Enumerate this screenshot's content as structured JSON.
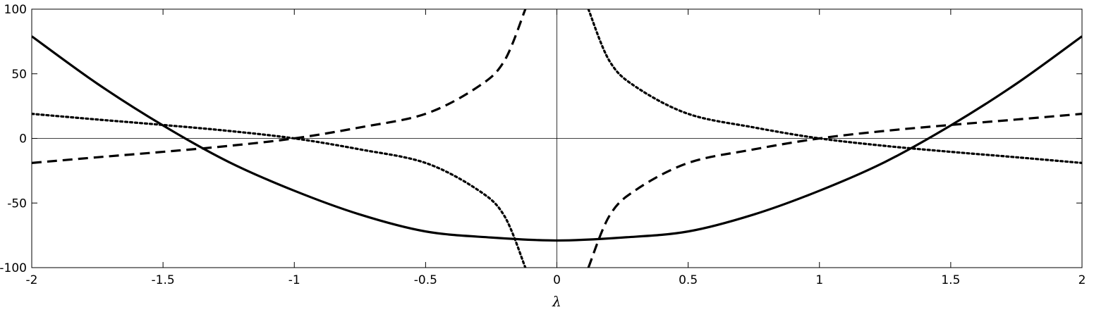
{
  "chart_data": {
    "type": "line",
    "xlabel": "λ",
    "ylabel": "",
    "xlim": [
      -2,
      2
    ],
    "ylim": [
      -100,
      100
    ],
    "xticks": [
      -2,
      -1.5,
      -1,
      -0.5,
      0,
      0.5,
      1,
      1.5,
      2
    ],
    "xtick_labels": [
      "-2",
      "-1.5",
      "-1",
      "-0.5",
      "0",
      "0.5",
      "1",
      "1.5",
      "2"
    ],
    "yticks": [
      -100,
      -50,
      0,
      50,
      100
    ],
    "ytick_labels": [
      "-100",
      "-50",
      "0",
      "50",
      "100"
    ],
    "grid": false,
    "reference_lines": {
      "x": 0,
      "y": 0
    },
    "series": [
      {
        "style": "solid",
        "color": "#000000",
        "x": [
          -2,
          -1.75,
          -1.5,
          -1.25,
          -1,
          -0.75,
          -0.5,
          -0.25,
          0,
          0.25,
          0.5,
          0.75,
          1,
          1.25,
          1.5,
          1.75,
          2
        ],
        "y": [
          79,
          42.3,
          10,
          -18.2,
          -40.5,
          -58.9,
          -72,
          -76.7,
          -79,
          -76.7,
          -72,
          -58.9,
          -40.5,
          -18.2,
          10,
          42.3,
          79
        ]
      },
      {
        "style": "dashed",
        "color": "#000000",
        "x": [
          -2,
          -1.75,
          -1.5,
          -1.25,
          -1,
          -0.75,
          -0.5,
          -0.3,
          -0.2,
          -0.12,
          0.12,
          0.2,
          0.3,
          0.5,
          0.75,
          1,
          1.25,
          1.5,
          1.75,
          2
        ],
        "y": [
          -19,
          -14.6,
          -10.4,
          -5.8,
          0,
          8.5,
          19,
          40,
          60,
          100,
          -100,
          -60,
          -40,
          -19,
          -8.5,
          0,
          5.8,
          10.4,
          14.6,
          19
        ]
      },
      {
        "style": "dotted",
        "color": "#000000",
        "x": [
          -2,
          -1.75,
          -1.5,
          -1.25,
          -1,
          -0.75,
          -0.5,
          -0.3,
          -0.2,
          -0.12,
          0.12,
          0.2,
          0.3,
          0.5,
          0.75,
          1,
          1.25,
          1.5,
          1.75,
          2
        ],
        "y": [
          19,
          14.6,
          10.4,
          5.8,
          0,
          -8.5,
          -19,
          -40,
          -60,
          -100,
          100,
          60,
          40,
          19,
          8.5,
          0,
          -5.8,
          -10.4,
          -14.6,
          -19
        ]
      }
    ]
  }
}
